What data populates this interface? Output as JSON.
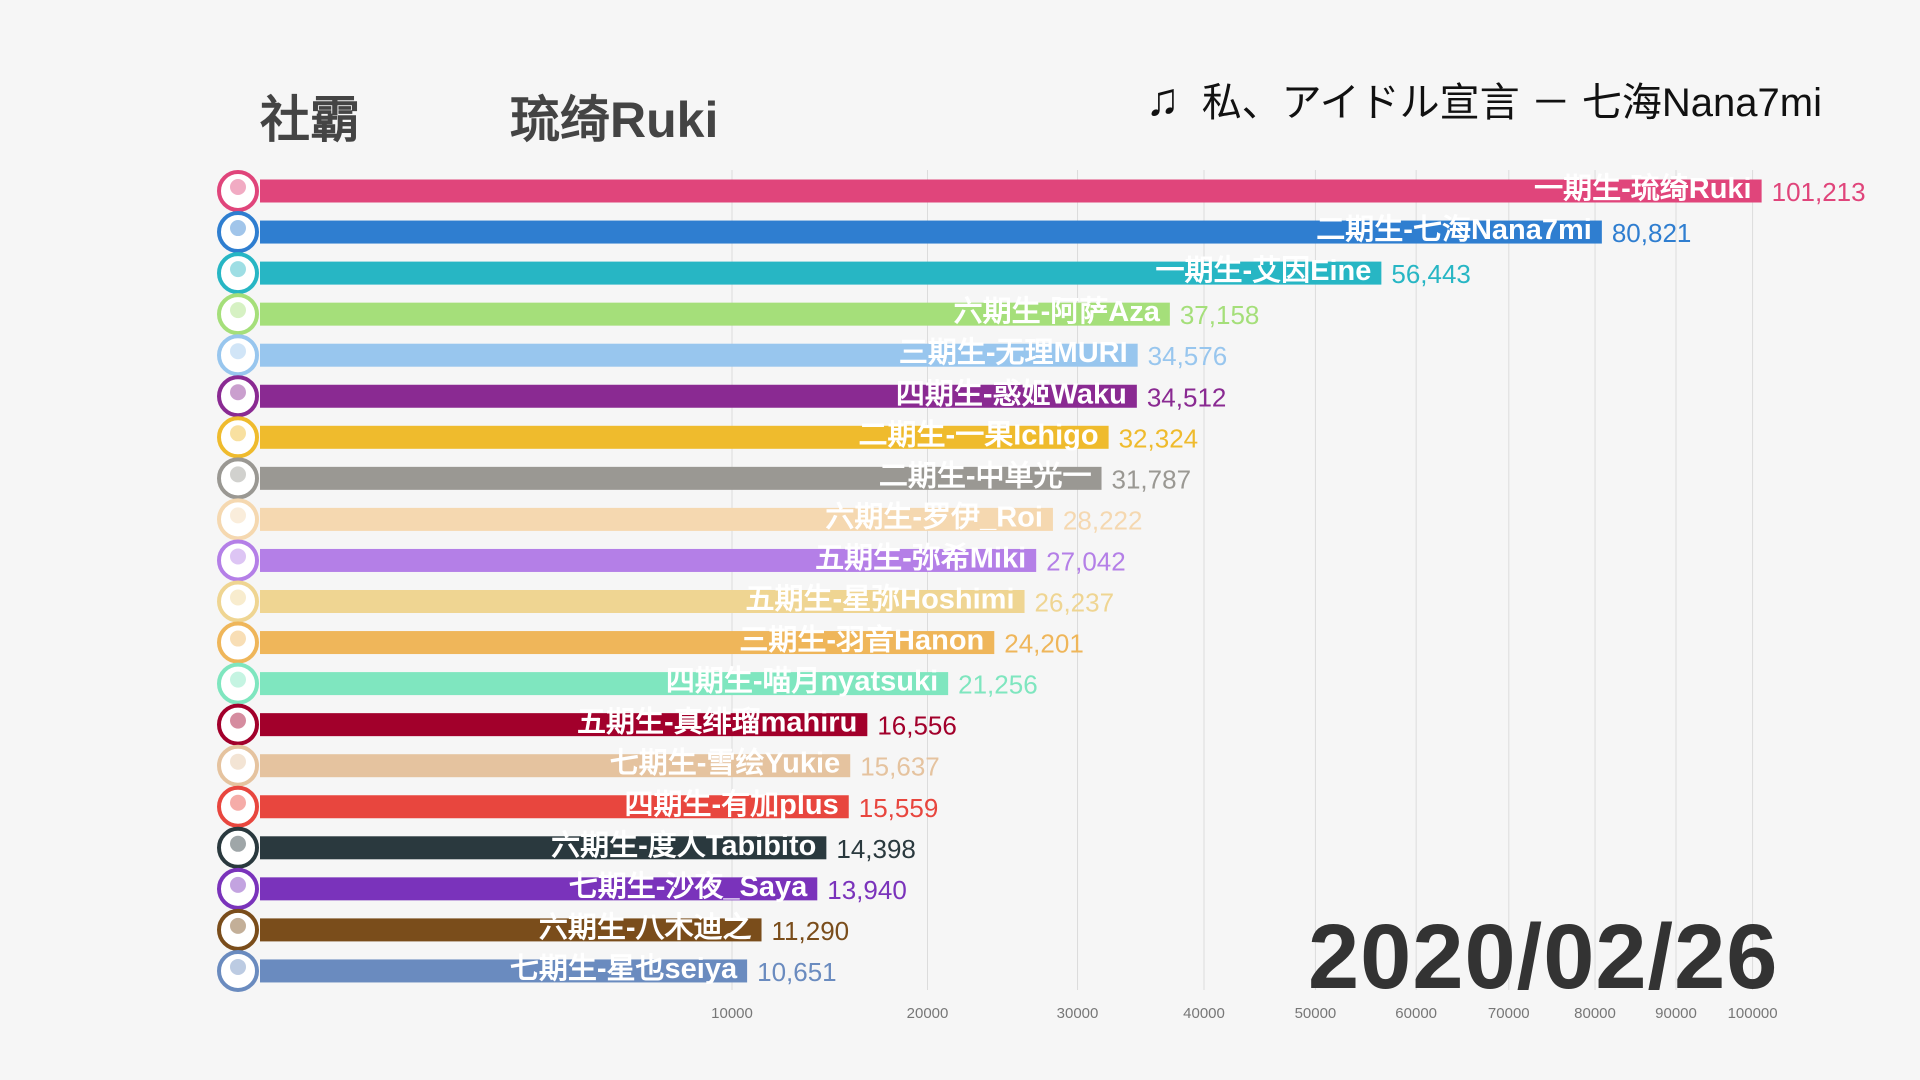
{
  "header": {
    "label": "社霸",
    "leader": "琉绮Ruki"
  },
  "song": {
    "icon": "music-note-icon",
    "note_glyph": "♫",
    "title": "私、アイドル宣言 － 七海Nana7mi"
  },
  "date": "2020/02/26",
  "chart_data": {
    "type": "bar",
    "orientation": "horizontal",
    "scale": "sqrt",
    "title": "",
    "xlabel": "",
    "ylabel": "",
    "xlim": [
      0,
      100000
    ],
    "grid": true,
    "ticks": [
      10000,
      20000,
      30000,
      40000,
      50000,
      60000,
      70000,
      80000,
      90000,
      100000
    ],
    "tick_labels": [
      "10000",
      "20000",
      "30000",
      "40000",
      "50000",
      "60000",
      "70000",
      "80000",
      "90000",
      "100000"
    ],
    "categories": [
      "一期生-琉绮Ruki",
      "二期生-七海Nana7mi",
      "一期生-艾因Eine",
      "六期生-阿萨Aza",
      "三期生-无理MURI",
      "四期生-惑姬Waku",
      "二期生-一果Ichigo",
      "二期生-中单光一",
      "六期生-罗伊_Roi",
      "五期生-弥希Miki",
      "五期生-星弥Hoshimi",
      "三期生-羽音Hanon",
      "四期生-喵月nyatsuki",
      "五期生-真绯瑠mahiru",
      "七期生-雪绘Yukie",
      "四期生-有加plus",
      "六期生-度人Tabibito",
      "七期生-沙夜_Saya",
      "六期生-八木迪之",
      "七期生-星也seiya"
    ],
    "values": [
      101213,
      80821,
      56443,
      37158,
      34576,
      34512,
      32324,
      31787,
      28222,
      27042,
      26237,
      24201,
      21256,
      16556,
      15637,
      15559,
      14398,
      13940,
      11290,
      10651
    ],
    "value_labels": [
      "101,213",
      "80,821",
      "56,443",
      "37,158",
      "34,576",
      "34,512",
      "32,324",
      "31,787",
      "28,222",
      "27,042",
      "26,237",
      "24,201",
      "21,256",
      "16,556",
      "15,637",
      "15,559",
      "14,398",
      "13,940",
      "11,290",
      "10,651"
    ],
    "colors": [
      "#e0457b",
      "#2f7ed0",
      "#27b6c4",
      "#a5df7a",
      "#98c6ee",
      "#8a2a92",
      "#efbb2d",
      "#9a9893",
      "#f5d8b0",
      "#b47fe7",
      "#efd592",
      "#efb65a",
      "#7fe6bf",
      "#a2002b",
      "#e5c39f",
      "#e8463e",
      "#2a393e",
      "#7a33bb",
      "#7a4d1b",
      "#6a8bbf"
    ]
  }
}
